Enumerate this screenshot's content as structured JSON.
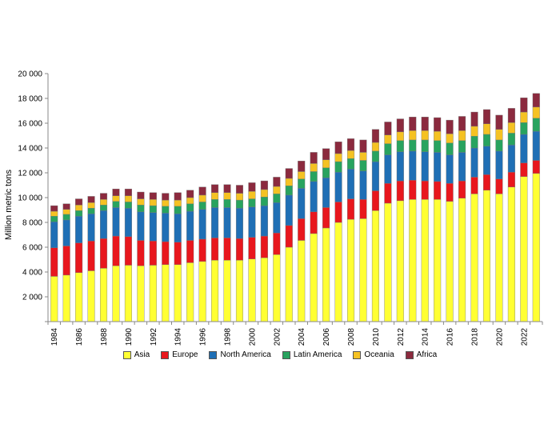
{
  "chart_data": {
    "type": "bar",
    "stacked": true,
    "title": "",
    "xlabel": "",
    "ylabel": "Million metric tons",
    "ylim": [
      0,
      20000
    ],
    "yticks": [
      0,
      2000,
      4000,
      6000,
      8000,
      10000,
      12000,
      14000,
      16000,
      18000,
      20000
    ],
    "ytick_labels": [
      "",
      "2 000",
      "4 000",
      "6 000",
      "8 000",
      "10 000",
      "12 000",
      "14 000",
      "16 000",
      "18 000",
      "20 000"
    ],
    "grid": false,
    "legend_position": "bottom",
    "categories": [
      1984,
      1985,
      1986,
      1987,
      1988,
      1989,
      1990,
      1991,
      1992,
      1993,
      1994,
      1995,
      1996,
      1997,
      1998,
      1999,
      2000,
      2001,
      2002,
      2003,
      2004,
      2005,
      2006,
      2007,
      2008,
      2009,
      2010,
      2011,
      2012,
      2013,
      2014,
      2015,
      2016,
      2017,
      2018,
      2019,
      2020,
      2021,
      2022,
      2023
    ],
    "xtick_labels": [
      "1984",
      "1986",
      "1988",
      "1990",
      "1992",
      "1994",
      "1996",
      "1998",
      "2000",
      "2002",
      "2004",
      "2006",
      "2008",
      "2010",
      "2012",
      "2014",
      "2016",
      "2018",
      "2020",
      "2022"
    ],
    "series": [
      {
        "name": "Asia",
        "color": "#ffff33",
        "values": [
          3650,
          3750,
          3950,
          4100,
          4300,
          4500,
          4550,
          4500,
          4550,
          4600,
          4600,
          4750,
          4850,
          4950,
          4950,
          4950,
          5050,
          5150,
          5400,
          6000,
          6550,
          7100,
          7550,
          8000,
          8250,
          8300,
          8950,
          9550,
          9750,
          9850,
          9850,
          9850,
          9700,
          9950,
          10300,
          10600,
          10300,
          10850,
          11700,
          11950
        ]
      },
      {
        "name": "Europe",
        "color": "#e8171d",
        "values": [
          2300,
          2350,
          2400,
          2400,
          2400,
          2400,
          2300,
          2050,
          1950,
          1850,
          1800,
          1800,
          1800,
          1800,
          1800,
          1750,
          1750,
          1750,
          1750,
          1750,
          1750,
          1750,
          1650,
          1650,
          1650,
          1550,
          1600,
          1600,
          1600,
          1550,
          1500,
          1450,
          1450,
          1400,
          1350,
          1250,
          1200,
          1200,
          1100,
          1050
        ]
      },
      {
        "name": "North America",
        "color": "#1f6fb5",
        "values": [
          2100,
          2100,
          2150,
          2200,
          2250,
          2300,
          2300,
          2300,
          2300,
          2300,
          2300,
          2350,
          2400,
          2450,
          2450,
          2450,
          2450,
          2450,
          2450,
          2450,
          2450,
          2450,
          2400,
          2400,
          2400,
          2300,
          2350,
          2300,
          2350,
          2350,
          2350,
          2350,
          2300,
          2300,
          2350,
          2300,
          2250,
          2200,
          2300,
          2350
        ]
      },
      {
        "name": "Latin America",
        "color": "#28a35f",
        "values": [
          450,
          450,
          450,
          450,
          450,
          500,
          500,
          550,
          550,
          550,
          600,
          600,
          600,
          650,
          650,
          650,
          650,
          700,
          700,
          750,
          750,
          800,
          800,
          850,
          850,
          850,
          850,
          900,
          900,
          900,
          950,
          950,
          950,
          950,
          950,
          950,
          900,
          950,
          950,
          1050
        ]
      },
      {
        "name": "Oceania",
        "color": "#f5c223",
        "values": [
          400,
          400,
          450,
          450,
          450,
          450,
          500,
          500,
          500,
          500,
          500,
          500,
          550,
          550,
          550,
          550,
          600,
          600,
          600,
          600,
          600,
          650,
          650,
          650,
          650,
          650,
          700,
          700,
          700,
          750,
          750,
          750,
          750,
          800,
          800,
          850,
          850,
          850,
          850,
          900
        ]
      },
      {
        "name": "Africa",
        "color": "#8b2a3e",
        "values": [
          450,
          450,
          500,
          500,
          500,
          550,
          550,
          550,
          550,
          550,
          600,
          600,
          650,
          650,
          650,
          650,
          700,
          700,
          750,
          800,
          850,
          900,
          900,
          950,
          950,
          1000,
          1050,
          1050,
          1050,
          1100,
          1100,
          1100,
          1100,
          1150,
          1150,
          1150,
          1150,
          1150,
          1150,
          1100
        ]
      }
    ]
  }
}
